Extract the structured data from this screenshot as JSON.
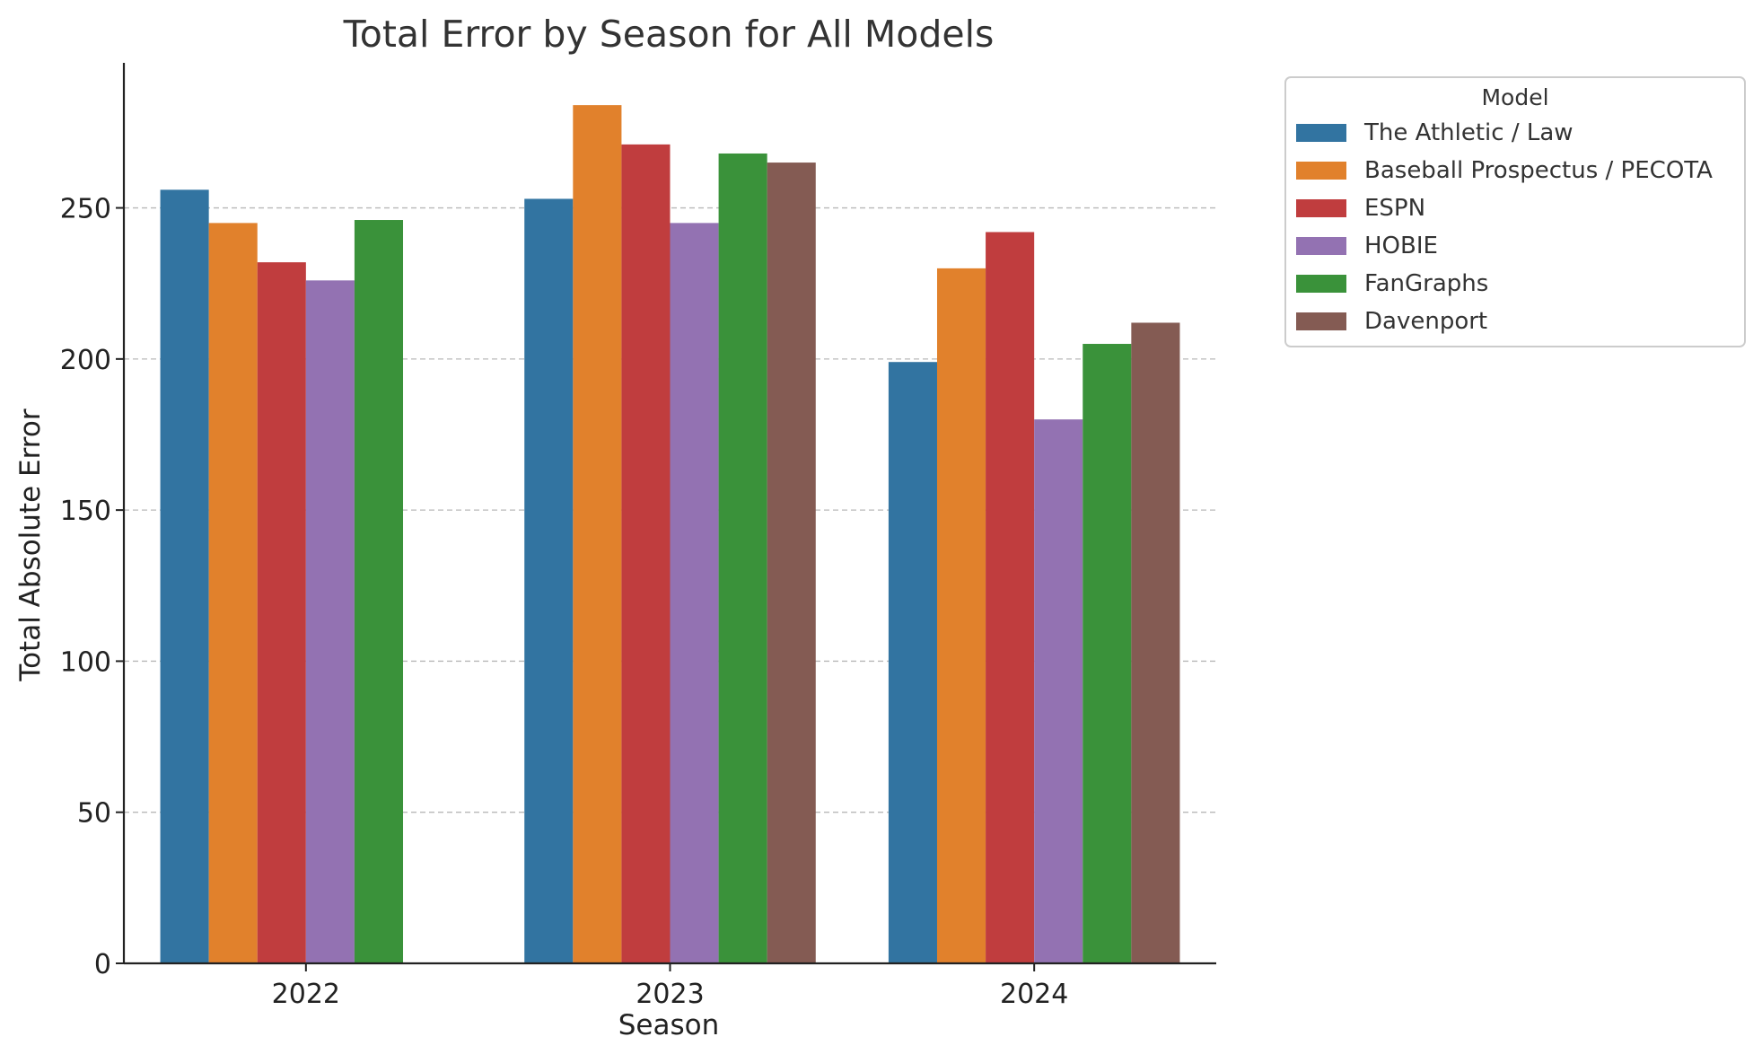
{
  "chart_data": {
    "type": "bar",
    "title": "Total Error by Season for All Models",
    "xlabel": "Season",
    "ylabel": "Total Absolute Error",
    "categories": [
      "2022",
      "2023",
      "2024"
    ],
    "ylim": [
      0,
      298
    ],
    "yticks": [
      0,
      50,
      100,
      150,
      200,
      250
    ],
    "grid": "y-dashed",
    "legend": {
      "title": "Model",
      "placement": "outside-top-right"
    },
    "series": [
      {
        "name": "The Athletic / Law",
        "color": "#3274a1",
        "values": [
          256,
          253,
          199
        ]
      },
      {
        "name": "Baseball Prospectus / PECOTA",
        "color": "#e1812c",
        "values": [
          245,
          284,
          230
        ]
      },
      {
        "name": "ESPN",
        "color": "#c03d3e",
        "values": [
          232,
          271,
          242
        ]
      },
      {
        "name": "HOBIE",
        "color": "#9372b2",
        "values": [
          226,
          245,
          180
        ]
      },
      {
        "name": "FanGraphs",
        "color": "#3a923a",
        "values": [
          246,
          268,
          205
        ]
      },
      {
        "name": "Davenport",
        "color": "#845b53",
        "values": [
          null,
          265,
          212
        ]
      }
    ]
  }
}
